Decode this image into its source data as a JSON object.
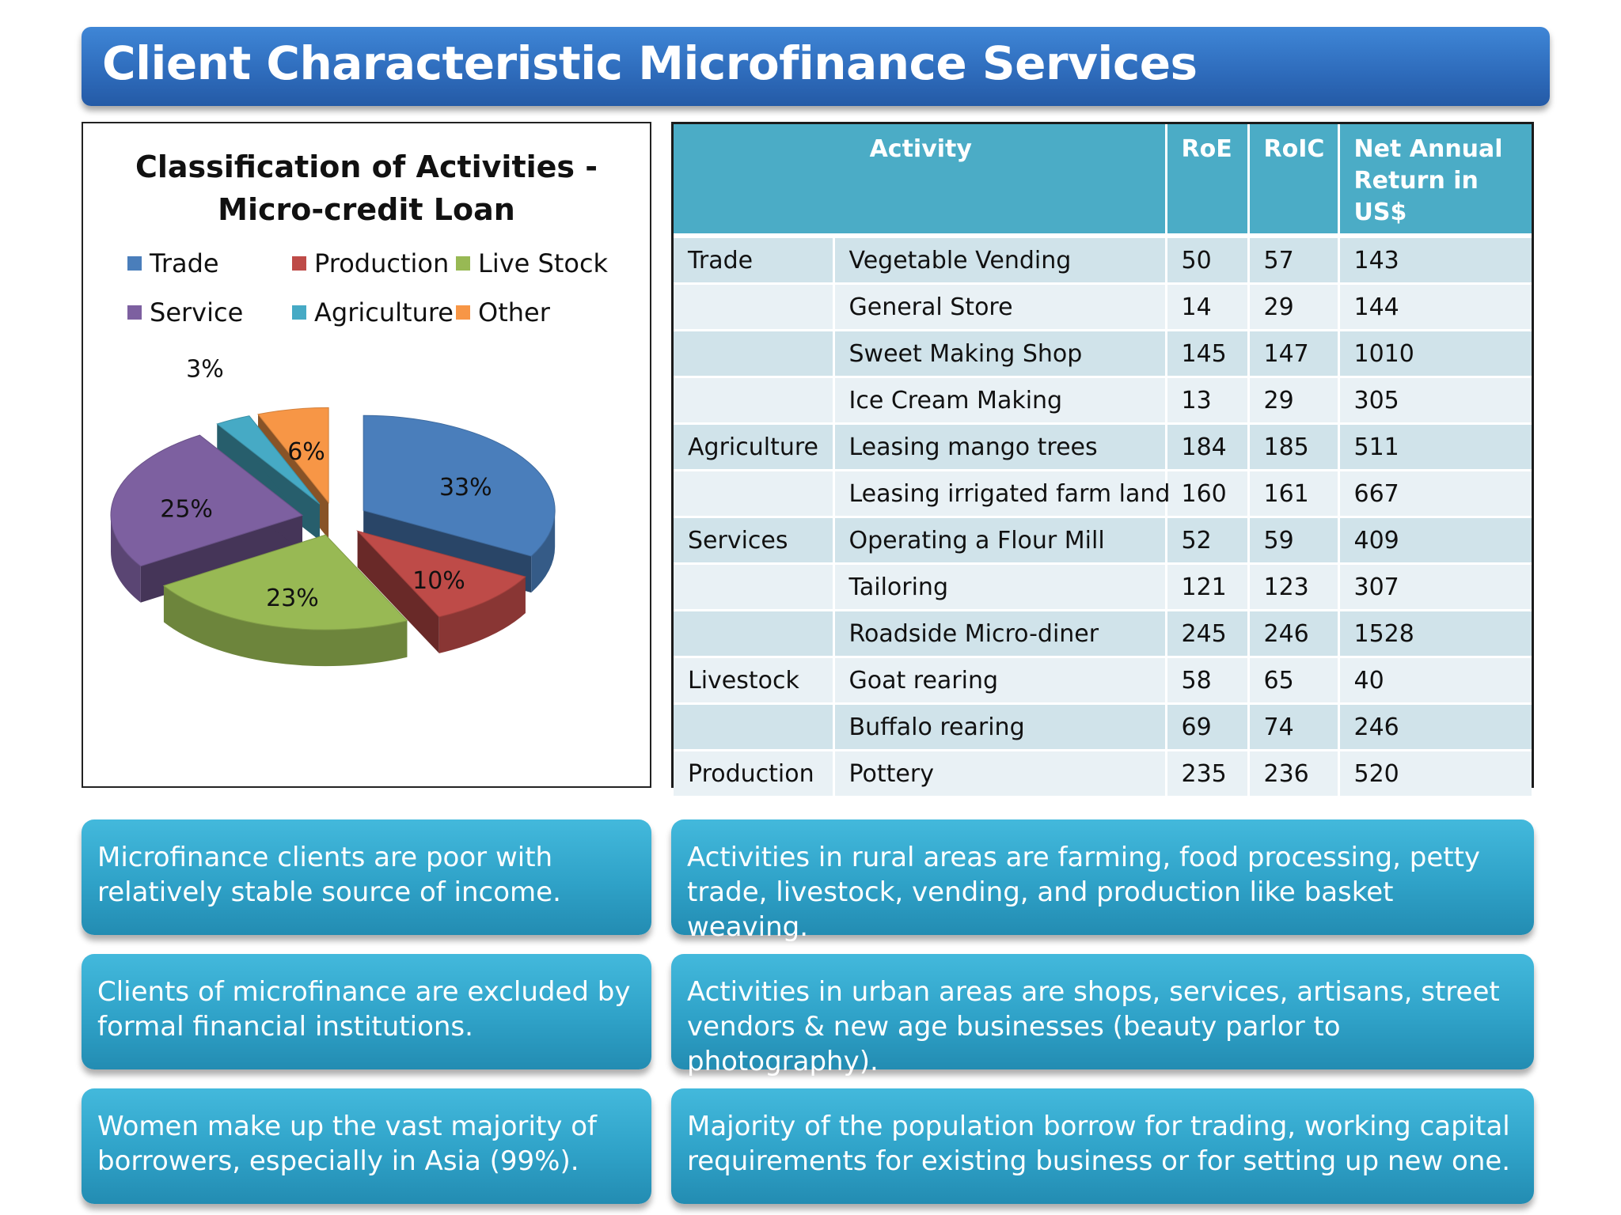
{
  "header": {
    "title": "Client Characteristic Microfinance Services"
  },
  "chart_data": {
    "type": "pie",
    "title_lines": [
      "Classification of Activities -",
      "Micro-credit Loan"
    ],
    "slices": [
      {
        "name": "Trade",
        "value": 33,
        "label": "33%",
        "color": "#4a7ebb"
      },
      {
        "name": "Production",
        "value": 10,
        "label": "10%",
        "color": "#be4b48"
      },
      {
        "name": "Live Stock",
        "value": 23,
        "label": "23%",
        "color": "#98b954"
      },
      {
        "name": "Service",
        "value": 25,
        "label": "25%",
        "color": "#7d60a0"
      },
      {
        "name": "Agriculture",
        "value": 3,
        "label": "3%",
        "color": "#46aac5"
      },
      {
        "name": "Other",
        "value": 6,
        "label": "6%",
        "color": "#f79646"
      }
    ],
    "legend_placement": "top",
    "style": "3d-exploded"
  },
  "table": {
    "headers": [
      "Activity",
      "RoE",
      "RoIC",
      "Net Annual Return in US$"
    ],
    "rows": [
      {
        "category": "Trade",
        "activity": "Vegetable Vending",
        "roe": "50",
        "roic": "57",
        "net": "143"
      },
      {
        "category": "",
        "activity": "General Store",
        "roe": "14",
        "roic": "29",
        "net": "144"
      },
      {
        "category": "",
        "activity": "Sweet Making Shop",
        "roe": "145",
        "roic": "147",
        "net": "1010"
      },
      {
        "category": "",
        "activity": "Ice Cream Making",
        "roe": "13",
        "roic": "29",
        "net": "305"
      },
      {
        "category": "Agriculture",
        "activity": "Leasing mango trees",
        "roe": "184",
        "roic": "185",
        "net": "511"
      },
      {
        "category": "",
        "activity": "Leasing irrigated farm land",
        "roe": "160",
        "roic": "161",
        "net": "667"
      },
      {
        "category": "Services",
        "activity": "Operating a Flour Mill",
        "roe": "52",
        "roic": "59",
        "net": "409"
      },
      {
        "category": "",
        "activity": "Tailoring",
        "roe": "121",
        "roic": "123",
        "net": "307"
      },
      {
        "category": "",
        "activity": "Roadside Micro-diner",
        "roe": "245",
        "roic": "246",
        "net": "1528"
      },
      {
        "category": "Livestock",
        "activity": "Goat rearing",
        "roe": "58",
        "roic": "65",
        "net": "40"
      },
      {
        "category": "",
        "activity": "Buffalo rearing",
        "roe": "69",
        "roic": "74",
        "net": "246"
      },
      {
        "category": "Production",
        "activity": "Pottery",
        "roe": "235",
        "roic": "236",
        "net": "520"
      }
    ]
  },
  "notes": [
    "Microfinance clients are poor with relatively stable source of income.",
    "Activities in rural areas are farming, food processing, petty trade, livestock,  vending, and production like basket weaving.",
    "Clients of microfinance are excluded by formal financial institutions.",
    "Activities in urban areas are shops, services, artisans, street vendors  & new age businesses (beauty parlor to photography).",
    "Women make up the vast majority of borrowers, especially in Asia (99%).",
    "Majority of the population borrow for trading, working capital requirements for existing business or for setting up new one."
  ]
}
